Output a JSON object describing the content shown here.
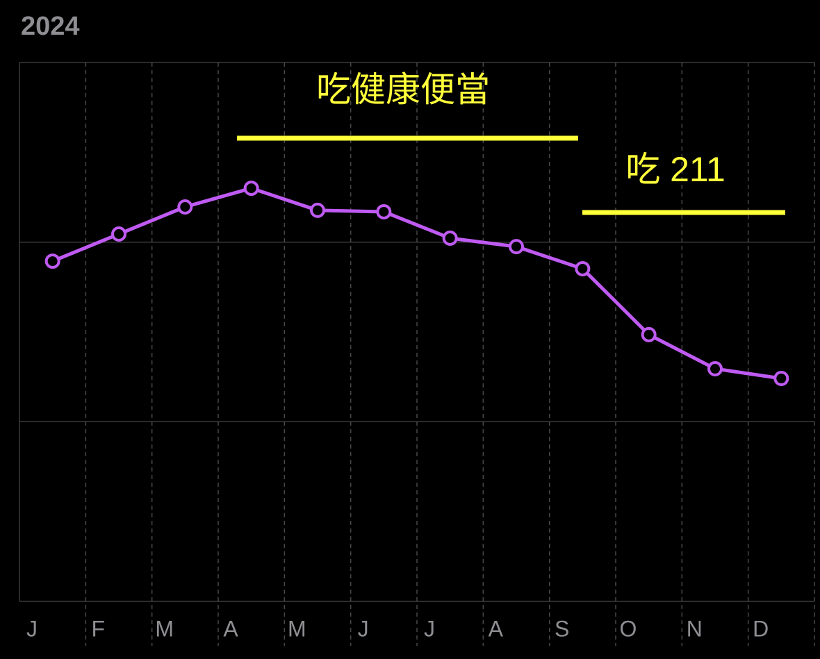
{
  "chart_data": {
    "type": "line",
    "title": "2024",
    "categories": [
      "J",
      "F",
      "M",
      "A",
      "M",
      "J",
      "J",
      "A",
      "S",
      "O",
      "N",
      "D"
    ],
    "series": [
      {
        "color": "#bf5af2",
        "values": [
          1.894,
          2.045,
          2.196,
          2.3,
          2.177,
          2.169,
          2.022,
          1.975,
          1.852,
          1.485,
          1.295,
          1.241
        ]
      }
    ],
    "ylim": [
      0,
      3
    ],
    "annotations": [
      {
        "text": "吃健康便當"
      },
      {
        "text": "吃 211"
      }
    ],
    "annotation_color": "#ffff3a"
  }
}
